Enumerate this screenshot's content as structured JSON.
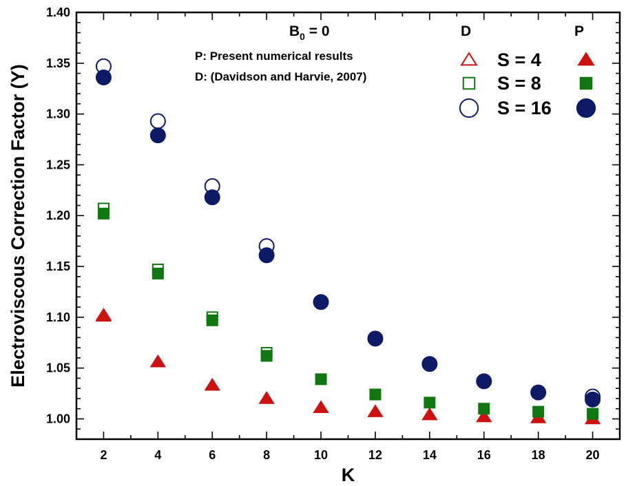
{
  "chart_data": {
    "type": "scatter",
    "xlabel": "K",
    "ylabel": "Electroviscous Correction Factor (Y)",
    "xlim": [
      1,
      21
    ],
    "ylim": [
      0.98,
      1.4
    ],
    "xticks": [
      "2",
      "4",
      "6",
      "8",
      "10",
      "12",
      "14",
      "16",
      "18",
      "20"
    ],
    "yticks": [
      "1.00",
      "1.05",
      "1.10",
      "1.15",
      "1.20",
      "1.25",
      "1.30",
      "1.35",
      "1.40"
    ],
    "x_major_values": [
      2,
      4,
      6,
      8,
      10,
      12,
      14,
      16,
      18,
      20
    ],
    "y_major_values": [
      1.0,
      1.05,
      1.1,
      1.15,
      1.2,
      1.25,
      1.3,
      1.35,
      1.4
    ],
    "grid": false,
    "legend_placement": "top-right",
    "annotations": {
      "b0_main": "B",
      "b0_sub": "0",
      "b0_rest": " = 0",
      "p_desc": "P: Present numerical results",
      "d_desc": "D: (Davidson and Harvie, 2007)",
      "col_d": "D",
      "col_p": "P"
    },
    "series": [
      {
        "name": "S = 4",
        "source": "D",
        "marker": "triangle-open",
        "color": "#cc1111",
        "x": [
          2
        ],
        "y": [
          1.102
        ]
      },
      {
        "name": "S = 4",
        "source": "P",
        "marker": "triangle-filled",
        "color": "#cc1111",
        "x": [
          2,
          4,
          6,
          8,
          10,
          12,
          14,
          16,
          18,
          20
        ],
        "y": [
          1.101,
          1.056,
          1.033,
          1.02,
          1.011,
          1.007,
          1.004,
          1.002,
          1.001,
          1.0
        ]
      },
      {
        "name": "S = 8",
        "source": "D",
        "marker": "square-open",
        "color": "#117711",
        "x": [
          2,
          4,
          6,
          8
        ],
        "y": [
          1.207,
          1.147,
          1.1,
          1.065
        ]
      },
      {
        "name": "S = 8",
        "source": "P",
        "marker": "square-filled",
        "color": "#117711",
        "x": [
          2,
          4,
          6,
          8,
          10,
          12,
          14,
          16,
          18,
          20
        ],
        "y": [
          1.202,
          1.143,
          1.097,
          1.062,
          1.039,
          1.024,
          1.016,
          1.01,
          1.007,
          1.005
        ]
      },
      {
        "name": "S = 16",
        "source": "D",
        "marker": "circle-open",
        "color": "#0d1a66",
        "x": [
          2,
          4,
          6,
          8,
          20
        ],
        "y": [
          1.347,
          1.293,
          1.229,
          1.17,
          1.022
        ]
      },
      {
        "name": "S = 16",
        "source": "P",
        "marker": "circle-filled",
        "color": "#0d1a66",
        "x": [
          2,
          4,
          6,
          8,
          10,
          12,
          14,
          16,
          18,
          20
        ],
        "y": [
          1.336,
          1.279,
          1.218,
          1.161,
          1.115,
          1.079,
          1.054,
          1.037,
          1.026,
          1.019
        ]
      }
    ],
    "legend": [
      {
        "label": "S = 4",
        "d_marker": "triangle-open",
        "p_marker": "triangle-filled",
        "color": "#cc1111"
      },
      {
        "label": "S = 8",
        "d_marker": "square-open",
        "p_marker": "square-filled",
        "color": "#117711"
      },
      {
        "label": "S = 16",
        "d_marker": "circle-open",
        "p_marker": "circle-filled",
        "color": "#0d1a66"
      }
    ]
  }
}
